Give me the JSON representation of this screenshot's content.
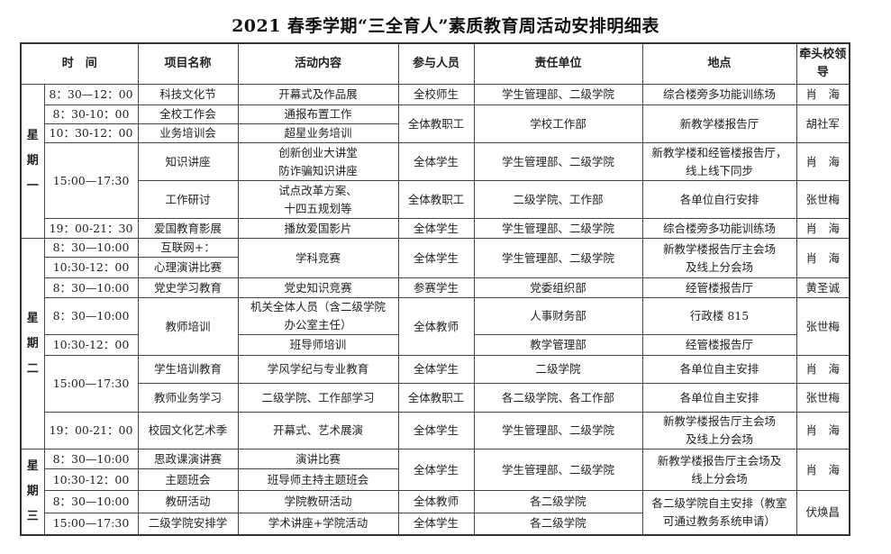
{
  "title": "2021 春季学期“三全育人”素质教育周活动安排明细表",
  "header": [
    "时　间",
    "项目名称",
    "活动内容",
    "参与人员",
    "责任单位",
    "地点",
    "牵头校领导"
  ],
  "rows": [
    [
      {
        "t": "星\n期\n一",
        "rs": 6,
        "day": true
      },
      {
        "t": "8：30—12：00"
      },
      {
        "t": "科技文化节"
      },
      {
        "t": "开幕式及作品展"
      },
      {
        "t": "全校师生"
      },
      {
        "t": "学生管理部、二级学院"
      },
      {
        "t": "综合楼旁多功能训练场"
      },
      {
        "t": "肖　海"
      }
    ],
    [
      {
        "t": "8：30-10：00"
      },
      {
        "t": "全校工作会"
      },
      {
        "t": "通报布置工作"
      },
      {
        "t": "全体教职工",
        "rs": 2
      },
      {
        "t": "学校工作部",
        "rs": 2
      },
      {
        "t": "新教学楼报告厅",
        "rs": 2
      },
      {
        "t": "胡社军",
        "rs": 2
      }
    ],
    [
      {
        "t": "10：30-12：00"
      },
      {
        "t": "业务培训会"
      },
      {
        "t": "超星业务培训"
      }
    ],
    [
      {
        "t": "15:00—17:30",
        "rs": 2
      },
      {
        "t": "知识讲座"
      },
      {
        "t": "创新创业大讲堂\n防诈骗知识讲座"
      },
      {
        "t": "全体学生"
      },
      {
        "t": "学生管理部、二级学院"
      },
      {
        "t": "新教学楼和经管楼报告厅，\n线上线下同步"
      },
      {
        "t": "肖　海"
      }
    ],
    [
      {
        "t": "工作研讨"
      },
      {
        "t": "试点改革方案、\n十四五规划等"
      },
      {
        "t": "全体教职工"
      },
      {
        "t": "二级学院、工作部"
      },
      {
        "t": "各单位自行安排"
      },
      {
        "t": "张世梅"
      }
    ],
    [
      {
        "t": "19：00-21：30"
      },
      {
        "t": "爱国教育影展"
      },
      {
        "t": "播放爱国影片"
      },
      {
        "t": "全体学生"
      },
      {
        "t": "学生管理部、二级学院"
      },
      {
        "t": "综合楼旁多功能训练场"
      },
      {
        "t": "肖　海"
      }
    ],
    [
      {
        "t": "星\n期\n二",
        "rs": 8,
        "day": true
      },
      {
        "t": "8：30—10:00"
      },
      {
        "t": "互联网+："
      },
      {
        "t": "学科竞赛",
        "rs": 2
      },
      {
        "t": "全体学生",
        "rs": 2
      },
      {
        "t": "学生管理部、二级学院",
        "rs": 2
      },
      {
        "t": "新教学楼报告厅主会场\n及线上分会场",
        "rs": 2
      },
      {
        "t": "肖　海",
        "rs": 2
      }
    ],
    [
      {
        "t": "10:30-12：00"
      },
      {
        "t": "心理演讲比赛"
      }
    ],
    [
      {
        "t": "8：30—10:00"
      },
      {
        "t": "党史学习教育"
      },
      {
        "t": "党史知识竞赛"
      },
      {
        "t": "参赛学生"
      },
      {
        "t": "党委组织部"
      },
      {
        "t": "经管楼报告厅"
      },
      {
        "t": "黄圣诚"
      }
    ],
    [
      {
        "t": "8：30—10:00"
      },
      {
        "t": "教师培训",
        "rs": 2
      },
      {
        "t": "机关全体人员（含二级学院\n办公室主任）"
      },
      {
        "t": "全体教师",
        "rs": 2
      },
      {
        "t": "人事财务部"
      },
      {
        "t": "行政楼 815"
      },
      {
        "t": "张世梅",
        "rs": 2
      }
    ],
    [
      {
        "t": "10:30-12：00"
      },
      {
        "t": "班导师培训"
      },
      {
        "t": "教学管理部"
      },
      {
        "t": "经管楼报告厅"
      }
    ],
    [
      {
        "t": "15:00—17:30",
        "rs": 2
      },
      {
        "t": "学生培训教育"
      },
      {
        "t": "学风学纪与专业教育"
      },
      {
        "t": "全体学生"
      },
      {
        "t": "二级学院"
      },
      {
        "t": "各单位自主安排"
      },
      {
        "t": "肖　海"
      }
    ],
    [
      {
        "t": "教师业务学习"
      },
      {
        "t": "二级学院、工作部学习"
      },
      {
        "t": "全体教职工"
      },
      {
        "t": "各二级学院、各工作部"
      },
      {
        "t": "各单位自主安排"
      },
      {
        "t": "张世梅"
      }
    ],
    [
      {
        "t": "19：00-21：00"
      },
      {
        "t": "校园文化艺术季"
      },
      {
        "t": "开幕式、艺术展演"
      },
      {
        "t": "全体学生"
      },
      {
        "t": "学生管理部、二级学院"
      },
      {
        "t": "新教学楼报告厅主会场\n及线上分会场"
      },
      {
        "t": "肖　海"
      }
    ],
    [
      {
        "t": "星\n期\n三",
        "rs": 4,
        "day": true
      },
      {
        "t": "8：30—10:00"
      },
      {
        "t": "思政课演讲赛"
      },
      {
        "t": "演讲比赛"
      },
      {
        "t": "全体学生",
        "rs": 2
      },
      {
        "t": "学生管理部、二级学院",
        "rs": 2
      },
      {
        "t": "新教学楼报告厅主会场及\n线上分会场",
        "rs": 2
      },
      {
        "t": "肖　海",
        "rs": 2
      }
    ],
    [
      {
        "t": "10:30-12：00"
      },
      {
        "t": "主题班会"
      },
      {
        "t": "班导师主持主题班会"
      }
    ],
    [
      {
        "t": "8：30—10:00"
      },
      {
        "t": "教研活动"
      },
      {
        "t": "学院教研活动"
      },
      {
        "t": "全体教师"
      },
      {
        "t": "各二级学院"
      },
      {
        "t": "各二级学院自主安排（教室\n可通过教务系统申请）",
        "rs": 2
      },
      {
        "t": "伏焕昌",
        "rs": 2
      }
    ],
    [
      {
        "t": "15:00—17:30"
      },
      {
        "t": "二级学院安排学"
      },
      {
        "t": "学术讲座+学院活动"
      },
      {
        "t": "全体学生"
      },
      {
        "t": "各二级学院"
      }
    ]
  ]
}
